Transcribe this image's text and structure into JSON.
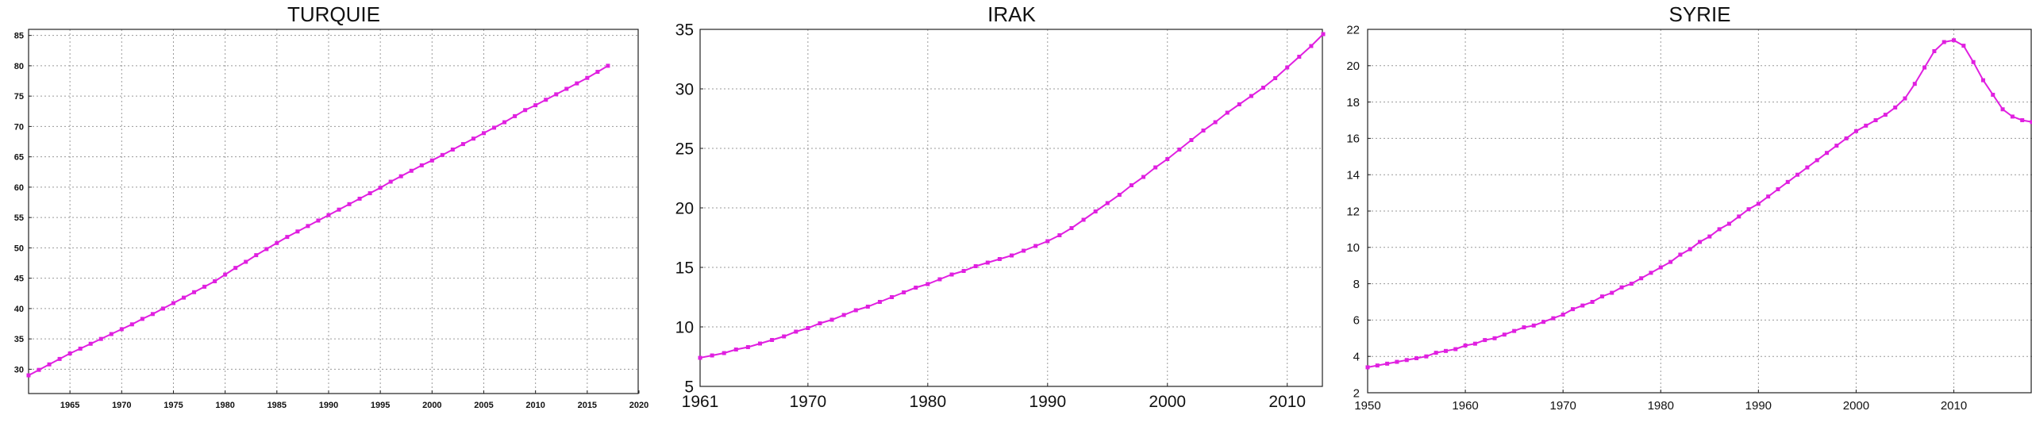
{
  "chart_data": [
    {
      "type": "line",
      "title": "TURQUIE",
      "xlabel": "",
      "ylabel": "",
      "xlim": [
        1961,
        2020
      ],
      "ylim": [
        26,
        86
      ],
      "xticks": [
        1965,
        1970,
        1975,
        1980,
        1985,
        1990,
        1995,
        2000,
        2005,
        2010,
        2015,
        2020
      ],
      "yticks": [
        30,
        35,
        40,
        45,
        50,
        55,
        60,
        65,
        70,
        75,
        80,
        85
      ],
      "grid": true,
      "color": "#e020e0",
      "series": [
        {
          "x": [
            1961,
            1962,
            1963,
            1964,
            1965,
            1966,
            1967,
            1968,
            1969,
            1970,
            1971,
            1972,
            1973,
            1974,
            1975,
            1976,
            1977,
            1978,
            1979,
            1980,
            1981,
            1982,
            1983,
            1984,
            1985,
            1986,
            1987,
            1988,
            1989,
            1990,
            1991,
            1992,
            1993,
            1994,
            1995,
            1996,
            1997,
            1998,
            1999,
            2000,
            2001,
            2002,
            2003,
            2004,
            2005,
            2006,
            2007,
            2008,
            2009,
            2010,
            2011,
            2012,
            2013,
            2014,
            2015,
            2016,
            2017
          ],
          "values": [
            29.0,
            29.9,
            30.8,
            31.7,
            32.6,
            33.4,
            34.2,
            35.0,
            35.8,
            36.6,
            37.4,
            38.3,
            39.1,
            40.0,
            40.9,
            41.8,
            42.7,
            43.6,
            44.5,
            45.6,
            46.7,
            47.7,
            48.8,
            49.8,
            50.8,
            51.8,
            52.7,
            53.6,
            54.5,
            55.4,
            56.3,
            57.2,
            58.1,
            59.0,
            59.9,
            60.9,
            61.8,
            62.7,
            63.6,
            64.4,
            65.3,
            66.2,
            67.1,
            68.0,
            68.9,
            69.8,
            70.7,
            71.7,
            72.7,
            73.5,
            74.4,
            75.3,
            76.2,
            77.1,
            78.0,
            79.0,
            80.0
          ]
        }
      ]
    },
    {
      "type": "line",
      "title": "IRAK",
      "xlabel": "",
      "ylabel": "",
      "xlim": [
        1961,
        2013
      ],
      "ylim": [
        5,
        35
      ],
      "xticks": [
        1961,
        1970,
        1980,
        1990,
        2000,
        2010
      ],
      "yticks": [
        5,
        10,
        15,
        20,
        25,
        30,
        35
      ],
      "grid": true,
      "color": "#e020e0",
      "series": [
        {
          "x": [
            1961,
            1962,
            1963,
            1964,
            1965,
            1966,
            1967,
            1968,
            1969,
            1970,
            1971,
            1972,
            1973,
            1974,
            1975,
            1976,
            1977,
            1978,
            1979,
            1980,
            1981,
            1982,
            1983,
            1984,
            1985,
            1986,
            1987,
            1988,
            1989,
            1990,
            1991,
            1992,
            1993,
            1994,
            1995,
            1996,
            1997,
            1998,
            1999,
            2000,
            2001,
            2002,
            2003,
            2004,
            2005,
            2006,
            2007,
            2008,
            2009,
            2010,
            2011,
            2012,
            2013
          ],
          "values": [
            7.4,
            7.6,
            7.8,
            8.1,
            8.3,
            8.6,
            8.9,
            9.2,
            9.6,
            9.9,
            10.3,
            10.6,
            11.0,
            11.4,
            11.7,
            12.1,
            12.5,
            12.9,
            13.3,
            13.6,
            14.0,
            14.4,
            14.7,
            15.1,
            15.4,
            15.7,
            16.0,
            16.4,
            16.8,
            17.2,
            17.7,
            18.3,
            19.0,
            19.7,
            20.4,
            21.1,
            21.9,
            22.6,
            23.4,
            24.1,
            24.9,
            25.7,
            26.5,
            27.2,
            28.0,
            28.7,
            29.4,
            30.1,
            30.9,
            31.8,
            32.7,
            33.6,
            34.6
          ]
        }
      ]
    },
    {
      "type": "line",
      "title": "SYRIE",
      "xlabel": "",
      "ylabel": "",
      "xlim": [
        1950,
        2018
      ],
      "ylim": [
        2,
        22
      ],
      "xticks": [
        1950,
        1960,
        1970,
        1980,
        1990,
        2000,
        2010
      ],
      "yticks": [
        2,
        4,
        6,
        8,
        10,
        12,
        14,
        16,
        18,
        20,
        22
      ],
      "grid": true,
      "color": "#e020e0",
      "series": [
        {
          "x": [
            1950,
            1951,
            1952,
            1953,
            1954,
            1955,
            1956,
            1957,
            1958,
            1959,
            1960,
            1961,
            1962,
            1963,
            1964,
            1965,
            1966,
            1967,
            1968,
            1969,
            1970,
            1971,
            1972,
            1973,
            1974,
            1975,
            1976,
            1977,
            1978,
            1979,
            1980,
            1981,
            1982,
            1983,
            1984,
            1985,
            1986,
            1987,
            1988,
            1989,
            1990,
            1991,
            1992,
            1993,
            1994,
            1995,
            1996,
            1997,
            1998,
            1999,
            2000,
            2001,
            2002,
            2003,
            2004,
            2005,
            2006,
            2007,
            2008,
            2009,
            2010,
            2011,
            2012,
            2013,
            2014,
            2015,
            2016,
            2017,
            2018
          ],
          "values": [
            3.4,
            3.5,
            3.6,
            3.7,
            3.8,
            3.9,
            4.0,
            4.2,
            4.3,
            4.4,
            4.6,
            4.7,
            4.9,
            5.0,
            5.2,
            5.4,
            5.6,
            5.7,
            5.9,
            6.1,
            6.3,
            6.6,
            6.8,
            7.0,
            7.3,
            7.5,
            7.8,
            8.0,
            8.3,
            8.6,
            8.9,
            9.2,
            9.6,
            9.9,
            10.3,
            10.6,
            11.0,
            11.3,
            11.7,
            12.1,
            12.4,
            12.8,
            13.2,
            13.6,
            14.0,
            14.4,
            14.8,
            15.2,
            15.6,
            16.0,
            16.4,
            16.7,
            17.0,
            17.3,
            17.7,
            18.2,
            19.0,
            19.9,
            20.8,
            21.3,
            21.4,
            21.1,
            20.2,
            19.2,
            18.4,
            17.6,
            17.2,
            17.0,
            16.9
          ]
        }
      ]
    }
  ]
}
